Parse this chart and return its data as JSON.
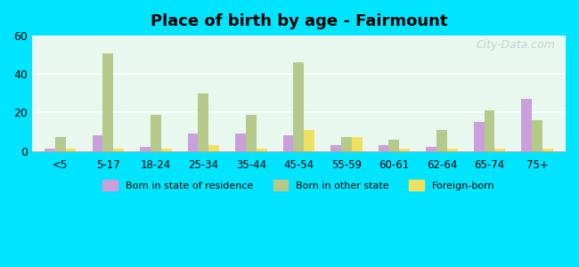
{
  "title": "Place of birth by age - Fairmount",
  "categories": [
    "<5",
    "5-17",
    "18-24",
    "25-34",
    "35-44",
    "45-54",
    "55-59",
    "60-61",
    "62-64",
    "65-74",
    "75+"
  ],
  "born_in_state": [
    1,
    8,
    2,
    9,
    9,
    8,
    3,
    3,
    2,
    15,
    27
  ],
  "born_other_state": [
    7,
    51,
    19,
    30,
    19,
    46,
    7,
    6,
    11,
    21,
    16
  ],
  "foreign_born": [
    1,
    1,
    1,
    3,
    1,
    11,
    7,
    1,
    1,
    1,
    1
  ],
  "color_state": "#c9a0dc",
  "color_other": "#b5c98a",
  "color_foreign": "#f0e060",
  "ylim": [
    0,
    60
  ],
  "yticks": [
    0,
    20,
    40,
    60
  ],
  "legend_labels": [
    "Born in state of residence",
    "Born in other state",
    "Foreign-born"
  ],
  "watermark": "City-Data.com",
  "figure_bg": "#00e5ff",
  "plot_bg": "#e8f8ee"
}
